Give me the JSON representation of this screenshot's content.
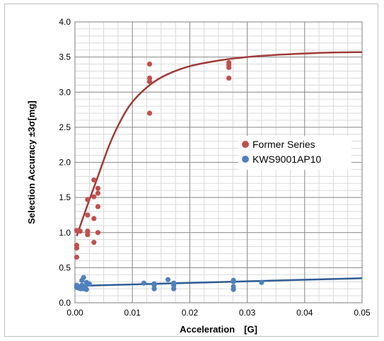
{
  "chart_data": {
    "type": "scatter",
    "xlabel": "Acceleration　[G]",
    "ylabel": "Selection  Accuracy  ±3σ[mg]",
    "xlim": [
      0,
      0.05
    ],
    "ylim": [
      0,
      4.0
    ],
    "x_ticks": [
      "0.00",
      "0.01",
      "0.02",
      "0.03",
      "0.04",
      "0.05"
    ],
    "y_ticks": [
      "0.0",
      "0.5",
      "1.0",
      "1.5",
      "2.0",
      "2.5",
      "3.0",
      "3.5",
      "4.0"
    ],
    "grid": true,
    "legend_position": "right",
    "series": [
      {
        "name": "Former Series",
        "color": "#c0504d",
        "line_color": "#9e3b38",
        "points": [
          [
            0.0003,
            0.65
          ],
          [
            0.0003,
            0.78
          ],
          [
            0.0003,
            0.82
          ],
          [
            0.0003,
            1.03
          ],
          [
            0.0009,
            1.02
          ],
          [
            0.0022,
            0.97
          ],
          [
            0.0022,
            1.02
          ],
          [
            0.0022,
            1.25
          ],
          [
            0.0022,
            1.47
          ],
          [
            0.0033,
            0.86
          ],
          [
            0.0033,
            1.2
          ],
          [
            0.0033,
            1.51
          ],
          [
            0.0033,
            1.75
          ],
          [
            0.004,
            1.0
          ],
          [
            0.004,
            1.37
          ],
          [
            0.004,
            1.56
          ],
          [
            0.004,
            1.63
          ],
          [
            0.013,
            2.7
          ],
          [
            0.013,
            3.15
          ],
          [
            0.013,
            3.2
          ],
          [
            0.013,
            3.4
          ],
          [
            0.0268,
            3.2
          ],
          [
            0.0268,
            3.35
          ],
          [
            0.0268,
            3.39
          ],
          [
            0.0268,
            3.42
          ]
        ],
        "trend": [
          [
            0.0003,
            0.95
          ],
          [
            0.002,
            1.35
          ],
          [
            0.004,
            1.8
          ],
          [
            0.006,
            2.25
          ],
          [
            0.008,
            2.6
          ],
          [
            0.01,
            2.86
          ],
          [
            0.013,
            3.1
          ],
          [
            0.016,
            3.25
          ],
          [
            0.02,
            3.37
          ],
          [
            0.025,
            3.45
          ],
          [
            0.03,
            3.5
          ],
          [
            0.035,
            3.53
          ],
          [
            0.04,
            3.55
          ],
          [
            0.045,
            3.565
          ],
          [
            0.05,
            3.57
          ]
        ]
      },
      {
        "name": "KWS9001AP10",
        "color": "#4f81bd",
        "line_color": "#2e5c94",
        "points": [
          [
            0.0003,
            0.22
          ],
          [
            0.0003,
            0.25
          ],
          [
            0.0006,
            0.21
          ],
          [
            0.001,
            0.2
          ],
          [
            0.0012,
            0.25
          ],
          [
            0.0012,
            0.32
          ],
          [
            0.0015,
            0.36
          ],
          [
            0.0015,
            0.2
          ],
          [
            0.0018,
            0.23
          ],
          [
            0.002,
            0.29
          ],
          [
            0.002,
            0.19
          ],
          [
            0.0025,
            0.27
          ],
          [
            0.012,
            0.28
          ],
          [
            0.0138,
            0.2
          ],
          [
            0.0138,
            0.25
          ],
          [
            0.0138,
            0.27
          ],
          [
            0.0162,
            0.33
          ],
          [
            0.0172,
            0.2
          ],
          [
            0.0172,
            0.25
          ],
          [
            0.0172,
            0.28
          ],
          [
            0.0276,
            0.19
          ],
          [
            0.0276,
            0.23
          ],
          [
            0.0276,
            0.3
          ],
          [
            0.0276,
            0.32
          ],
          [
            0.0325,
            0.29
          ]
        ],
        "trend": [
          [
            0.0003,
            0.24
          ],
          [
            0.05,
            0.35
          ]
        ]
      }
    ]
  }
}
